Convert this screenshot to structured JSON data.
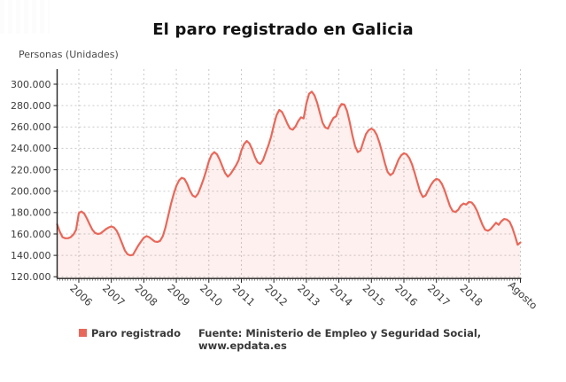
{
  "header": {
    "title": "El paro registrado en Galicia"
  },
  "legend": {
    "label": "Paro registrado"
  },
  "footer": {
    "source": "Fuente: Ministerio de Empleo y Seguridad Social, www.epdata.es"
  },
  "colors": {
    "line": "#e8685a",
    "area_fill": "rgba(232,104,90,0.10)",
    "grid": "#c9c9c9",
    "axis": "#222222",
    "tick_text": "#3c3c3c",
    "title_text": "#111111"
  },
  "chart_data": {
    "type": "area",
    "title": "El paro registrado en Galicia",
    "xlabel": "",
    "ylabel": "Personas (Unidades)",
    "ylim": [
      120000,
      300000
    ],
    "grid": true,
    "legend_position": "bottom-left",
    "x_unit": "month",
    "x_start": "2005-05",
    "x_end": "2019-08",
    "y_ticks": [
      {
        "label": "300.000",
        "value": 300000
      },
      {
        "label": "280.000",
        "value": 280000
      },
      {
        "label": "260.000",
        "value": 260000
      },
      {
        "label": "240.000",
        "value": 240000
      },
      {
        "label": "220.000",
        "value": 220000
      },
      {
        "label": "200.000",
        "value": 200000
      },
      {
        "label": "180.000",
        "value": 180000
      },
      {
        "label": "160.000",
        "value": 160000
      },
      {
        "label": "140.000",
        "value": 140000
      },
      {
        "label": "120.000",
        "value": 120000
      }
    ],
    "x_ticks": [
      {
        "label": "2006",
        "month_index": 8
      },
      {
        "label": "2007",
        "month_index": 20
      },
      {
        "label": "2008",
        "month_index": 32
      },
      {
        "label": "2009",
        "month_index": 44
      },
      {
        "label": "2010",
        "month_index": 56
      },
      {
        "label": "2011",
        "month_index": 68
      },
      {
        "label": "2012",
        "month_index": 80
      },
      {
        "label": "2013",
        "month_index": 92
      },
      {
        "label": "2014",
        "month_index": 104
      },
      {
        "label": "2015",
        "month_index": 116
      },
      {
        "label": "2016",
        "month_index": 128
      },
      {
        "label": "2017",
        "month_index": 140
      },
      {
        "label": "2018",
        "month_index": 152
      },
      {
        "label": "Agosto",
        "month_index": 171
      }
    ],
    "series": [
      {
        "name": "Paro registrado",
        "color": "#e8685a",
        "values": [
          169000,
          162000,
          157000,
          156000,
          156000,
          157000,
          159500,
          164000,
          179500,
          181000,
          179000,
          174500,
          169000,
          164000,
          161000,
          160000,
          160500,
          162500,
          164500,
          166000,
          167000,
          166000,
          163000,
          157500,
          151000,
          144500,
          141000,
          140000,
          140500,
          145000,
          149500,
          153000,
          156500,
          158000,
          157000,
          155000,
          153000,
          152500,
          153500,
          158000,
          166000,
          177000,
          188000,
          197000,
          205000,
          210000,
          212500,
          211500,
          207000,
          200500,
          196000,
          194500,
          197500,
          204000,
          211000,
          219000,
          228000,
          234000,
          236500,
          234500,
          229500,
          223000,
          217000,
          213500,
          216000,
          220000,
          224000,
          229000,
          238000,
          244000,
          247000,
          244500,
          239000,
          232000,
          227000,
          225500,
          229000,
          236000,
          243000,
          251000,
          262000,
          271000,
          276000,
          274000,
          269000,
          263000,
          258500,
          257500,
          260500,
          265500,
          269000,
          268000,
          282000,
          291000,
          293000,
          289500,
          282500,
          273000,
          264000,
          259500,
          258500,
          264000,
          268500,
          270000,
          277500,
          281500,
          281000,
          275000,
          264500,
          252000,
          242000,
          236500,
          238000,
          246000,
          253500,
          257000,
          258500,
          257000,
          252500,
          245000,
          236000,
          226000,
          218000,
          215000,
          217000,
          223000,
          229500,
          233500,
          235500,
          234500,
          231000,
          225000,
          217000,
          208000,
          199500,
          194500,
          196000,
          201000,
          206000,
          209500,
          211500,
          210500,
          207000,
          201000,
          193500,
          186000,
          181500,
          180500,
          182500,
          186500,
          188500,
          187500,
          190000,
          189500,
          186500,
          181500,
          175000,
          168500,
          164000,
          163000,
          164500,
          167500,
          170500,
          168500,
          172000,
          174000,
          173500,
          171500,
          166000,
          158500,
          150000,
          152000
        ]
      }
    ]
  }
}
